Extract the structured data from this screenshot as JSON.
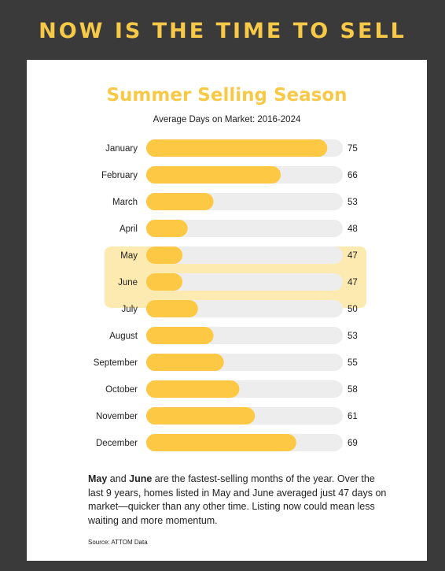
{
  "headline": "NOW IS THE TIME TO SELL",
  "colors": {
    "background": "#3a3a3a",
    "accent": "#f7c948",
    "bar": "#fdc844",
    "track": "#ededed",
    "highlight": "#fdeab0"
  },
  "chart_data": {
    "type": "bar",
    "orientation": "horizontal",
    "title": "Summer Selling Season",
    "subtitle": "Average Days on Market: 2016-2024",
    "categories": [
      "January",
      "February",
      "March",
      "April",
      "May",
      "June",
      "July",
      "August",
      "September",
      "October",
      "November",
      "December"
    ],
    "values": [
      75,
      66,
      53,
      48,
      47,
      47,
      50,
      53,
      55,
      58,
      61,
      69
    ],
    "highlighted": [
      "May",
      "June"
    ],
    "xlim": [
      40,
      78
    ],
    "grid": false,
    "legend": "none"
  },
  "description": {
    "month1": "May",
    "and": " and ",
    "month2": "June",
    "text": " are the fastest-selling months of the year. Over the last 9 years, homes listed in May and June averaged just 47 days on market—quicker than any other time. Listing now could mean less waiting and more momentum."
  },
  "source": "Source: ATTOM Data"
}
